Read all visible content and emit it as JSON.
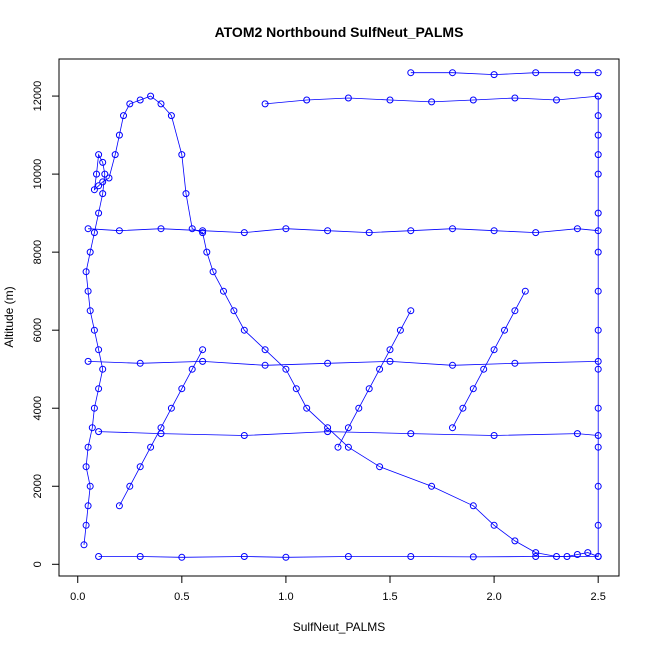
{
  "chart_data": {
    "type": "scatter",
    "title": "ATOM2 Northbound SulfNeut_PALMS",
    "xlabel": "SulfNeut_PALMS",
    "ylabel": "Altitude (m)",
    "xlim": [
      -0.09,
      2.6
    ],
    "ylim": [
      -300,
      12950
    ],
    "xticks": [
      "0.0",
      "0.5",
      "1.0",
      "1.5",
      "2.0",
      "2.5"
    ],
    "yticks": [
      "0",
      "2000",
      "4000",
      "6000",
      "8000",
      "10000",
      "12000"
    ],
    "grid": false,
    "legend": "none",
    "colors": {
      "series": "#0000ff",
      "axes": "#000000",
      "background": "#ffffff"
    },
    "marker": "open-circle",
    "connected": true,
    "series": [
      {
        "x": [
          0.03,
          0.04,
          0.05,
          0.06,
          0.04,
          0.05,
          0.07,
          0.08,
          0.1,
          0.12,
          0.1,
          0.08,
          0.06,
          0.05,
          0.04,
          0.06,
          0.08,
          0.1,
          0.12,
          0.13,
          0.12,
          0.1,
          0.09,
          0.08,
          0.1,
          0.12,
          0.15,
          0.18,
          0.2,
          0.22,
          0.25,
          0.3,
          0.35,
          0.4,
          0.45,
          0.5,
          0.52,
          0.55,
          0.6,
          0.62,
          0.65,
          0.7,
          0.75,
          0.8,
          0.9,
          1.0,
          1.05,
          1.1,
          1.2,
          1.3,
          1.45,
          1.7,
          1.9,
          2.0,
          2.1,
          2.2,
          2.3,
          2.35,
          2.4,
          2.45,
          2.5,
          2.5,
          2.5,
          2.5,
          2.5,
          2.5,
          2.5,
          2.5,
          2.5,
          2.5,
          2.5,
          2.5,
          2.5,
          2.5,
          2.5
        ],
        "y": [
          500,
          1000,
          1500,
          2000,
          2500,
          3000,
          3500,
          4000,
          4500,
          5000,
          5500,
          6000,
          6500,
          7000,
          7500,
          8000,
          8500,
          9000,
          9500,
          10000,
          10300,
          10500,
          10000,
          9600,
          9700,
          9800,
          9900,
          10500,
          11000,
          11500,
          11800,
          11900,
          12000,
          11800,
          11500,
          10500,
          9500,
          8600,
          8500,
          8000,
          7500,
          7000,
          6500,
          6000,
          5500,
          5000,
          4500,
          4000,
          3500,
          3000,
          2500,
          2000,
          1500,
          1000,
          600,
          300,
          200,
          200,
          250,
          300,
          200,
          1000,
          2000,
          3000,
          4000,
          5000,
          6000,
          7000,
          8000,
          9000,
          10000,
          10500,
          11000,
          11500,
          12000
        ]
      },
      {
        "x": [
          0.1,
          0.3,
          0.5,
          0.8,
          1.0,
          1.3,
          1.6,
          1.9,
          2.2,
          2.5
        ],
        "y": [
          200,
          200,
          180,
          200,
          180,
          200,
          200,
          190,
          200,
          200
        ]
      },
      {
        "x": [
          0.9,
          1.1,
          1.3,
          1.5,
          1.7,
          1.9,
          2.1,
          2.3,
          2.5
        ],
        "y": [
          11800,
          11900,
          11950,
          11900,
          11850,
          11900,
          11950,
          11900,
          12000
        ]
      },
      {
        "x": [
          1.6,
          1.8,
          2.0,
          2.2,
          2.4,
          2.5
        ],
        "y": [
          12600,
          12600,
          12550,
          12600,
          12600,
          12600
        ]
      },
      {
        "x": [
          0.05,
          0.2,
          0.4,
          0.6,
          0.8,
          1.0,
          1.2,
          1.4,
          1.6,
          1.8,
          2.0,
          2.2,
          2.4,
          2.5
        ],
        "y": [
          8600,
          8550,
          8600,
          8550,
          8500,
          8600,
          8550,
          8500,
          8550,
          8600,
          8550,
          8500,
          8600,
          8550
        ]
      },
      {
        "x": [
          0.1,
          0.4,
          0.8,
          1.2,
          1.6,
          2.0,
          2.4,
          2.5
        ],
        "y": [
          3400,
          3350,
          3300,
          3400,
          3350,
          3300,
          3350,
          3300
        ]
      },
      {
        "x": [
          0.05,
          0.3,
          0.6,
          0.9,
          1.2,
          1.5,
          1.8,
          2.1,
          2.5
        ],
        "y": [
          5200,
          5150,
          5200,
          5100,
          5150,
          5200,
          5100,
          5150,
          5200
        ]
      },
      {
        "x": [
          0.2,
          0.25,
          0.3,
          0.35,
          0.4,
          0.45,
          0.5,
          0.55,
          0.6
        ],
        "y": [
          1500,
          2000,
          2500,
          3000,
          3500,
          4000,
          4500,
          5000,
          5500
        ]
      },
      {
        "x": [
          1.25,
          1.3,
          1.35,
          1.4,
          1.45,
          1.5,
          1.55,
          1.6
        ],
        "y": [
          3000,
          3500,
          4000,
          4500,
          5000,
          5500,
          6000,
          6500
        ]
      },
      {
        "x": [
          1.8,
          1.85,
          1.9,
          1.95,
          2.0,
          2.05,
          2.1,
          2.15
        ],
        "y": [
          3500,
          4000,
          4500,
          5000,
          5500,
          6000,
          6500,
          7000
        ]
      }
    ]
  }
}
